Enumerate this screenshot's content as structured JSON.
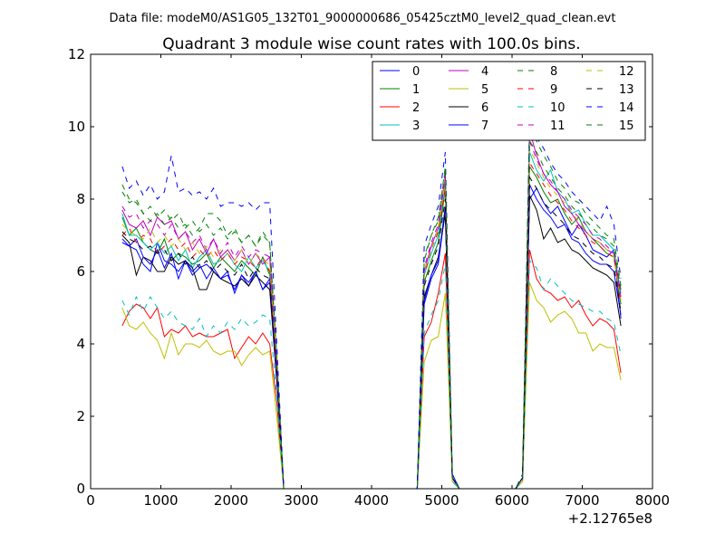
{
  "figure": {
    "suptitle": "Data file: modeM0/AS1G05_132T01_9000000686_05425cztM0_level2_quad_clean.evt"
  },
  "chart_data": {
    "type": "line",
    "title": "Quadrant 3 module wise count rates with 100.0s bins.",
    "xlabel": "",
    "ylabel": "",
    "xlim": [
      0,
      8000
    ],
    "ylim": [
      0,
      12
    ],
    "x_offset_label": "+2.12765e8",
    "xticks": [
      0,
      1000,
      2000,
      3000,
      4000,
      5000,
      6000,
      7000,
      8000
    ],
    "yticks": [
      0,
      2,
      4,
      6,
      8,
      10,
      12
    ],
    "grid": false,
    "legend_location": "top-right",
    "legend_columns": 4,
    "x": [
      450,
      550,
      650,
      750,
      850,
      950,
      1050,
      1150,
      1250,
      1350,
      1450,
      1550,
      1650,
      1750,
      1850,
      1950,
      2050,
      2150,
      2250,
      2350,
      2450,
      2550,
      2650,
      2750,
      2850,
      2950,
      3050,
      3150,
      3250,
      3350,
      3450,
      3550,
      3650,
      3750,
      3850,
      3950,
      4050,
      4150,
      4250,
      4350,
      4450,
      4550,
      4650,
      4750,
      4850,
      4950,
      5050,
      5150,
      5250,
      5350,
      5450,
      5550,
      5650,
      5750,
      5850,
      5950,
      6050,
      6150,
      6250,
      6350,
      6450,
      6550,
      6650,
      6750,
      6850,
      6950,
      7050,
      7150,
      7250,
      7350,
      7450,
      7550
    ],
    "series": [
      {
        "name": "0",
        "style": "solid",
        "values": [
          6.9,
          6.7,
          6.6,
          6.2,
          6.0,
          6.8,
          6.3,
          6.2,
          6.0,
          6.3,
          5.9,
          6.1,
          6.2,
          6.0,
          5.8,
          5.9,
          5.5,
          5.9,
          5.6,
          6.0,
          5.5,
          5.7,
          3.0,
          0,
          0,
          0,
          0,
          0,
          0,
          0,
          0,
          0,
          0,
          0,
          0,
          0,
          0,
          0,
          0,
          0,
          0,
          0,
          0,
          5.1,
          5.8,
          6.2,
          7.7,
          0.4,
          0,
          0,
          0,
          0,
          0,
          0,
          0,
          0,
          0,
          0.3,
          8.0,
          8.3,
          7.9,
          7.6,
          7.8,
          7.4,
          7.0,
          7.3,
          7.0,
          6.6,
          6.5,
          6.4,
          6.6,
          4.7
        ]
      },
      {
        "name": "1",
        "style": "solid",
        "values": [
          7.5,
          7.0,
          7.2,
          6.8,
          6.6,
          6.5,
          6.9,
          6.3,
          6.5,
          6.4,
          6.2,
          6.3,
          6.5,
          6.1,
          6.4,
          6.2,
          6.0,
          6.3,
          6.1,
          5.9,
          6.4,
          5.9,
          3.3,
          0,
          0,
          0,
          0,
          0,
          0,
          0,
          0,
          0,
          0,
          0,
          0,
          0,
          0,
          0,
          0,
          0,
          0,
          0,
          0,
          5.7,
          6.3,
          6.8,
          8.3,
          0.3,
          0,
          0,
          0,
          0,
          0,
          0,
          0,
          0,
          0,
          0.3,
          8.9,
          8.6,
          8.2,
          7.9,
          8.0,
          7.6,
          7.3,
          7.5,
          7.1,
          6.9,
          6.7,
          6.5,
          6.4,
          5.1
        ]
      },
      {
        "name": "2",
        "style": "solid",
        "values": [
          4.5,
          4.9,
          5.1,
          5.0,
          4.7,
          5.0,
          4.2,
          4.4,
          4.3,
          4.5,
          4.2,
          4.3,
          4.2,
          4.2,
          4.3,
          4.4,
          3.6,
          3.9,
          4.2,
          4.0,
          4.3,
          4.0,
          2.4,
          0,
          0,
          0,
          0,
          0,
          0,
          0,
          0,
          0,
          0,
          0,
          0,
          0,
          0,
          0,
          0,
          0,
          0,
          0,
          0,
          4.2,
          4.6,
          5.4,
          6.5,
          0.2,
          0,
          0,
          0,
          0,
          0,
          0,
          0,
          0,
          0,
          0.2,
          6.6,
          5.8,
          5.5,
          5.4,
          5.2,
          5.3,
          5.0,
          5.2,
          4.8,
          4.5,
          4.7,
          4.6,
          4.4,
          3.2
        ]
      },
      {
        "name": "3",
        "style": "solid",
        "values": [
          7.6,
          7.0,
          7.0,
          6.8,
          6.6,
          6.8,
          6.5,
          6.7,
          6.3,
          6.6,
          6.1,
          6.4,
          6.6,
          6.2,
          6.3,
          6.5,
          6.2,
          6.0,
          6.4,
          6.1,
          6.3,
          6.0,
          3.4,
          0,
          0,
          0,
          0,
          0,
          0,
          0,
          0,
          0,
          0,
          0,
          0,
          0,
          0,
          0,
          0,
          0,
          0,
          0,
          0,
          5.9,
          6.5,
          7.0,
          8.4,
          0.3,
          0,
          0,
          0,
          0,
          0,
          0,
          0,
          0,
          0,
          0.3,
          9.3,
          8.8,
          8.5,
          8.8,
          8.2,
          8.0,
          7.6,
          7.7,
          7.3,
          7.0,
          7.0,
          6.8,
          6.6,
          5.4
        ]
      },
      {
        "name": "4",
        "style": "solid",
        "values": [
          7.7,
          7.3,
          7.2,
          7.4,
          7.0,
          7.5,
          7.3,
          7.4,
          6.9,
          7.1,
          6.6,
          6.9,
          6.5,
          6.9,
          6.4,
          6.6,
          6.3,
          6.6,
          6.2,
          6.5,
          6.2,
          6.4,
          3.5,
          0,
          0,
          0,
          0,
          0,
          0,
          0,
          0,
          0,
          0,
          0,
          0,
          0,
          0,
          0,
          0,
          0,
          0,
          0,
          0,
          6.0,
          6.7,
          7.2,
          8.6,
          0.3,
          0,
          0,
          0,
          0,
          0,
          0,
          0,
          0,
          0,
          0.3,
          9.9,
          9.2,
          8.7,
          8.4,
          8.2,
          7.8,
          7.6,
          7.3,
          7.1,
          6.9,
          6.8,
          6.6,
          6.5,
          5.3
        ]
      },
      {
        "name": "5",
        "style": "solid",
        "values": [
          5.0,
          4.5,
          4.4,
          4.6,
          4.3,
          4.1,
          3.6,
          4.3,
          3.7,
          4.0,
          4.0,
          3.9,
          4.1,
          3.8,
          3.7,
          3.8,
          3.8,
          3.4,
          3.7,
          3.9,
          3.7,
          3.8,
          2.0,
          0,
          0,
          0,
          0,
          0,
          0,
          0,
          0,
          0,
          0,
          0,
          0,
          0,
          0,
          0,
          0,
          0,
          0,
          0,
          0,
          3.5,
          4.1,
          4.2,
          5.4,
          0.2,
          0,
          0,
          0,
          0,
          0,
          0,
          0,
          0,
          0,
          0.2,
          5.7,
          5.2,
          5.0,
          4.6,
          4.8,
          4.9,
          4.7,
          4.3,
          4.3,
          3.8,
          4.0,
          3.9,
          3.9,
          3.0
        ]
      },
      {
        "name": "6",
        "style": "solid",
        "values": [
          7.0,
          6.8,
          5.9,
          6.4,
          6.3,
          6.0,
          6.0,
          6.4,
          6.2,
          6.3,
          6.1,
          5.5,
          5.5,
          6.0,
          5.8,
          5.7,
          5.6,
          5.8,
          5.6,
          5.9,
          5.7,
          5.5,
          3.0,
          0,
          0,
          0,
          0,
          0,
          0,
          0,
          0,
          0,
          0,
          0,
          0,
          0,
          0,
          0,
          0,
          0,
          0,
          0,
          0,
          5.3,
          5.9,
          6.4,
          7.6,
          0.3,
          0,
          0,
          0,
          0,
          0,
          0,
          0,
          0,
          0,
          0.3,
          8.1,
          7.7,
          6.9,
          7.2,
          6.8,
          6.9,
          6.6,
          6.5,
          6.3,
          6.1,
          6.0,
          5.9,
          5.7,
          4.5
        ]
      },
      {
        "name": "7",
        "style": "solid",
        "values": [
          6.8,
          6.7,
          6.9,
          6.4,
          6.2,
          6.6,
          6.1,
          6.5,
          5.8,
          6.3,
          6.0,
          6.2,
          5.8,
          6.1,
          5.8,
          6.0,
          5.4,
          5.9,
          5.7,
          6.0,
          5.5,
          5.8,
          3.1,
          0,
          0,
          0,
          0,
          0,
          0,
          0,
          0,
          0,
          0,
          0,
          0,
          0,
          0,
          0,
          0,
          0,
          0,
          0,
          0,
          5.2,
          5.9,
          6.3,
          7.8,
          0.3,
          0,
          0,
          0,
          0,
          0,
          0,
          0,
          0,
          0,
          0.3,
          8.4,
          8.0,
          7.7,
          7.5,
          7.2,
          7.3,
          6.9,
          6.8,
          6.5,
          6.3,
          6.2,
          6.2,
          6.0,
          4.8
        ]
      },
      {
        "name": "8",
        "style": "dashed",
        "values": [
          8.2,
          7.9,
          8.0,
          7.6,
          7.4,
          7.6,
          7.3,
          7.5,
          7.2,
          7.3,
          7.0,
          7.2,
          7.6,
          7.6,
          7.4,
          7.0,
          7.2,
          6.8,
          7.0,
          6.7,
          7.1,
          6.8,
          3.7,
          0,
          0,
          0,
          0,
          0,
          0,
          0,
          0,
          0,
          0,
          0,
          0,
          0,
          0,
          0,
          0,
          0,
          0,
          0,
          0,
          6.4,
          7.0,
          7.5,
          8.8,
          0.3,
          0,
          0,
          0,
          0,
          0,
          0,
          0,
          0,
          0,
          0.3,
          10.3,
          9.6,
          9.2,
          8.9,
          8.5,
          8.3,
          8.0,
          7.9,
          7.6,
          7.4,
          7.2,
          7.0,
          6.9,
          5.6
        ]
      },
      {
        "name": "9",
        "style": "dashed",
        "values": [
          7.0,
          7.2,
          6.8,
          7.0,
          6.9,
          6.5,
          6.7,
          6.9,
          6.6,
          6.8,
          6.4,
          6.6,
          6.4,
          6.6,
          6.3,
          6.5,
          6.2,
          6.4,
          6.3,
          6.1,
          6.4,
          6.0,
          3.4,
          0,
          0,
          0,
          0,
          0,
          0,
          0,
          0,
          0,
          0,
          0,
          0,
          0,
          0,
          0,
          0,
          0,
          0,
          0,
          0,
          5.9,
          6.6,
          7.1,
          8.3,
          0.3,
          0,
          0,
          0,
          0,
          0,
          0,
          0,
          0,
          0,
          0.3,
          9.0,
          8.7,
          8.4,
          8.1,
          7.9,
          7.7,
          7.4,
          7.2,
          7.0,
          6.8,
          6.7,
          6.5,
          6.4,
          5.1
        ]
      },
      {
        "name": "10",
        "style": "dashed",
        "values": [
          5.2,
          4.8,
          5.3,
          4.9,
          5.3,
          5.0,
          4.7,
          4.9,
          4.6,
          4.5,
          4.4,
          4.7,
          4.2,
          4.5,
          4.3,
          4.6,
          4.4,
          4.7,
          4.5,
          4.6,
          4.8,
          4.7,
          2.5,
          0,
          0,
          0,
          0,
          0,
          0,
          0,
          0,
          0,
          0,
          0,
          0,
          0,
          0,
          0,
          0,
          0,
          0,
          0,
          0,
          4.3,
          4.8,
          5.2,
          6.2,
          0.2,
          0,
          0,
          0,
          0,
          0,
          0,
          0,
          0,
          0,
          0.2,
          6.3,
          6.1,
          5.5,
          5.8,
          5.6,
          5.4,
          5.2,
          5.1,
          5.0,
          4.9,
          4.9,
          4.7,
          4.6,
          3.7
        ]
      },
      {
        "name": "11",
        "style": "dashed",
        "values": [
          7.8,
          7.5,
          7.6,
          7.2,
          7.4,
          7.3,
          7.0,
          7.3,
          6.9,
          7.1,
          6.8,
          7.0,
          6.6,
          6.9,
          6.5,
          6.8,
          6.4,
          6.7,
          6.4,
          6.6,
          6.5,
          6.4,
          3.6,
          0,
          0,
          0,
          0,
          0,
          0,
          0,
          0,
          0,
          0,
          0,
          0,
          0,
          0,
          0,
          0,
          0,
          0,
          0,
          0,
          6.1,
          6.8,
          7.3,
          8.7,
          0.3,
          0,
          0,
          0,
          0,
          0,
          0,
          0,
          0,
          0,
          0.3,
          9.6,
          9.1,
          8.7,
          8.5,
          8.2,
          8.0,
          7.7,
          7.5,
          7.3,
          7.0,
          6.9,
          6.7,
          6.5,
          5.4
        ]
      },
      {
        "name": "12",
        "style": "dashed",
        "values": [
          7.3,
          7.1,
          7.0,
          6.9,
          7.2,
          6.8,
          7.0,
          6.7,
          6.9,
          6.6,
          6.8,
          6.5,
          6.7,
          6.4,
          6.6,
          6.5,
          6.3,
          6.6,
          6.2,
          6.5,
          6.3,
          6.2,
          3.5,
          0,
          0,
          0,
          0,
          0,
          0,
          0,
          0,
          0,
          0,
          0,
          0,
          0,
          0,
          0,
          0,
          0,
          0,
          0,
          0,
          6.0,
          6.6,
          7.2,
          8.5,
          0.3,
          0,
          0,
          0,
          0,
          0,
          0,
          0,
          0,
          0,
          0.3,
          9.4,
          9.0,
          8.6,
          8.3,
          8.1,
          7.9,
          7.6,
          7.4,
          7.1,
          6.9,
          6.8,
          6.6,
          6.4,
          5.2
        ]
      },
      {
        "name": "13",
        "style": "dashed",
        "values": [
          7.1,
          6.9,
          6.8,
          6.6,
          6.7,
          6.5,
          6.6,
          6.3,
          6.5,
          6.2,
          6.4,
          6.1,
          6.3,
          6.0,
          6.2,
          6.0,
          5.9,
          6.2,
          5.8,
          6.1,
          5.9,
          5.8,
          3.2,
          0,
          0,
          0,
          0,
          0,
          0,
          0,
          0,
          0,
          0,
          0,
          0,
          0,
          0,
          0,
          0,
          0,
          0,
          0,
          0,
          5.6,
          6.2,
          6.7,
          8.0,
          0.3,
          0,
          0,
          0,
          0,
          0,
          0,
          0,
          0,
          0,
          0.3,
          8.6,
          8.3,
          7.9,
          7.7,
          7.5,
          7.3,
          7.0,
          6.9,
          6.7,
          6.5,
          6.4,
          6.2,
          6.1,
          4.9
        ]
      },
      {
        "name": "14",
        "style": "dashed",
        "values": [
          8.9,
          8.3,
          8.5,
          8.1,
          8.4,
          8.0,
          8.2,
          9.2,
          8.2,
          8.3,
          8.1,
          8.2,
          8.0,
          8.3,
          7.8,
          7.9,
          7.9,
          7.8,
          7.9,
          7.7,
          7.9,
          7.9,
          4.0,
          0,
          0,
          0,
          0,
          0,
          0,
          0,
          0,
          0,
          0,
          0,
          0,
          0,
          0,
          0,
          0,
          0,
          0,
          0,
          0,
          6.7,
          7.3,
          7.8,
          9.3,
          0.4,
          0,
          0,
          0,
          0,
          0,
          0,
          0,
          0,
          0,
          0.4,
          10.1,
          9.7,
          9.4,
          9.0,
          8.7,
          8.5,
          8.2,
          8.0,
          7.8,
          7.6,
          7.4,
          7.8,
          7.3,
          5.8
        ]
      },
      {
        "name": "15",
        "style": "dashed",
        "values": [
          8.4,
          8.0,
          7.9,
          7.6,
          7.8,
          7.5,
          7.7,
          7.4,
          7.6,
          7.2,
          7.4,
          7.1,
          7.3,
          7.0,
          7.2,
          6.9,
          7.1,
          6.8,
          7.0,
          6.7,
          7.0,
          6.8,
          3.7,
          0,
          0,
          0,
          0,
          0,
          0,
          0,
          0,
          0,
          0,
          0,
          0,
          0,
          0,
          0,
          0,
          0,
          0,
          0,
          0,
          6.3,
          7.0,
          7.4,
          8.9,
          0.3,
          0,
          0,
          0,
          0,
          0,
          0,
          0,
          0,
          0,
          0.3,
          9.6,
          9.3,
          8.9,
          8.6,
          8.3,
          8.1,
          7.8,
          7.6,
          7.4,
          7.2,
          7.0,
          6.9,
          6.7,
          5.5
        ]
      }
    ]
  },
  "colors": {
    "0": "#0000ff",
    "1": "#008000",
    "2": "#ff0000",
    "3": "#00bfbf",
    "4": "#bf00bf",
    "5": "#bfbf00",
    "6": "#000000",
    "7": "#0000ff",
    "8": "#008000",
    "9": "#ff0000",
    "10": "#00bfbf",
    "11": "#bf00bf",
    "12": "#bfbf00",
    "13": "#000000",
    "14": "#0000ff",
    "15": "#008000",
    "axes": "#000000",
    "background": "#ffffff",
    "legend_edge": "#000000"
  }
}
